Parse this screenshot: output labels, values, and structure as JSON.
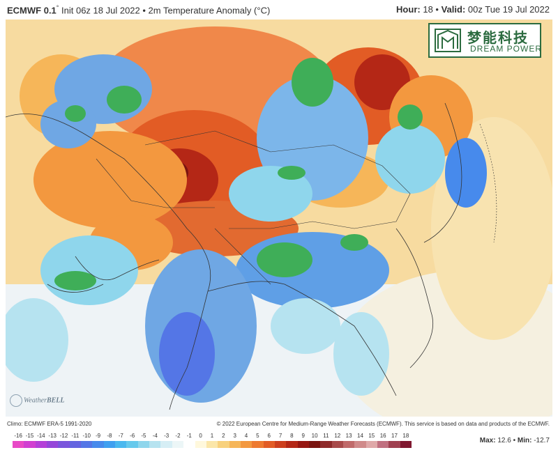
{
  "header": {
    "model": "ECMWF 0.1",
    "degree": "°",
    "run": " Init 06z 18 Jul 2022 • 2m Temperature Anomaly (°C)",
    "hour_label": "Hour:",
    "hour_value": "18",
    "valid_label": "Valid:",
    "valid_value": "00z Tue 19 Jul 2022"
  },
  "logo": {
    "chinese": "梦能科技",
    "english": "DREAM POWER"
  },
  "watermark": {
    "prefix": "Weather",
    "brand": "BELL"
  },
  "footer": {
    "climo": "Climo: ECMWF ERA-5 1991-2020",
    "copyright": "© 2022 European Centre for Medium-Range Weather Forecasts (ECMWF). This service is based on data and products of the ECMWF."
  },
  "legend": {
    "ticks": [
      "-16",
      "-15",
      "-14",
      "-13",
      "-12",
      "-11",
      "-10",
      "-9",
      "-8",
      "-7",
      "-6",
      "-5",
      "-4",
      "-3",
      "-2",
      "-1",
      "0",
      "1",
      "2",
      "3",
      "4",
      "5",
      "6",
      "7",
      "8",
      "9",
      "10",
      "11",
      "12",
      "13",
      "14",
      "15",
      "16",
      "17",
      "18"
    ],
    "colors": [
      "#e84ac6",
      "#d13fd1",
      "#b43fd8",
      "#9546d9",
      "#7a55dc",
      "#6464e0",
      "#5476e6",
      "#478aec",
      "#3f9ff0",
      "#4ab8ef",
      "#66c9ec",
      "#8fd6ec",
      "#b6e3f0",
      "#d6eef5",
      "#ecf6f7",
      "#ffffff",
      "#fff8dc",
      "#fbe6a8",
      "#f8d17d",
      "#f6b659",
      "#f3983f",
      "#ee7a30",
      "#e25c25",
      "#cd3f1d",
      "#b42716",
      "#961611",
      "#7a1410",
      "#8e2a2a",
      "#a84a4a",
      "#c06a6a",
      "#d08a8a",
      "#dfa8a8",
      "#c07080",
      "#a04050",
      "#801830"
    ],
    "max_label": "Max:",
    "max_value": "12.6",
    "min_label": "Min:",
    "min_value": "-12.7"
  }
}
